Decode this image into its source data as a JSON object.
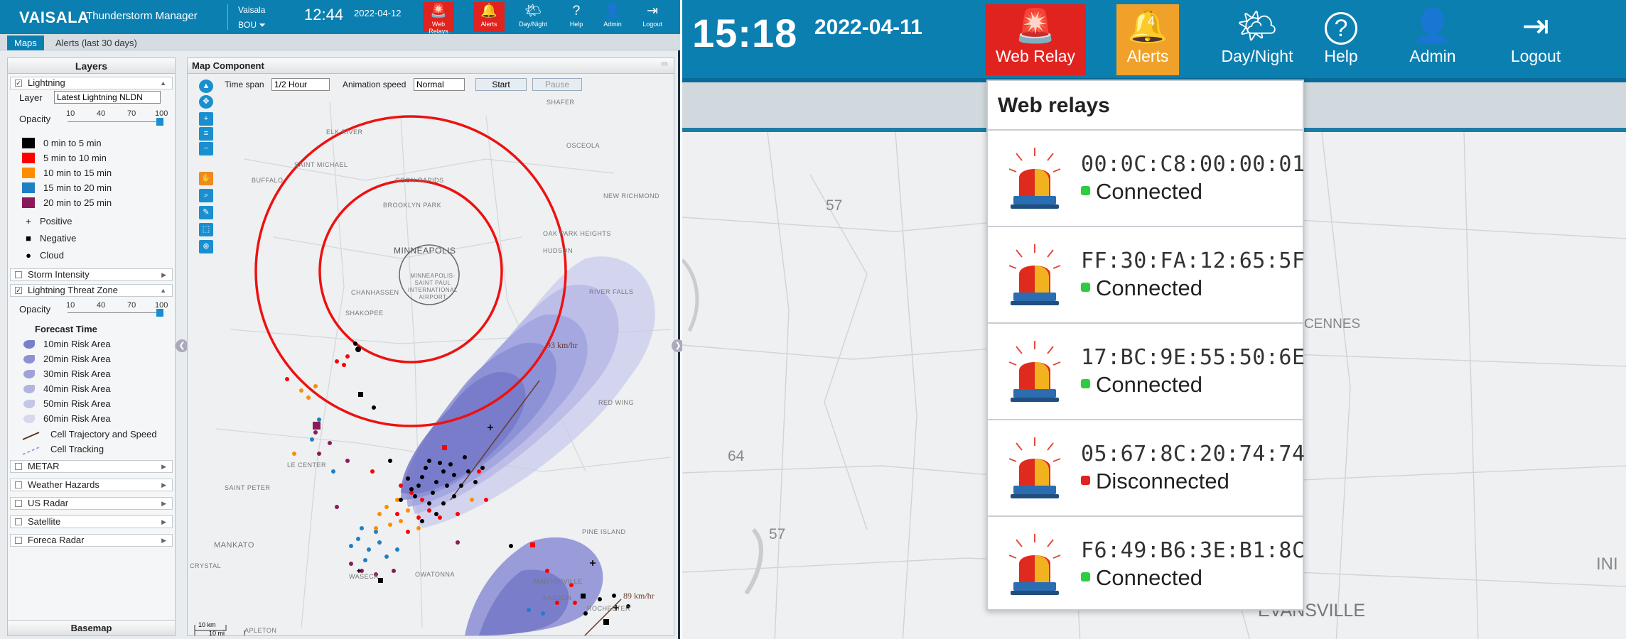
{
  "left": {
    "brand": "VAISALA",
    "app_title": "/ Thunderstorm Manager",
    "org": "Vaisala",
    "site": "BOU ⏷",
    "clock": "12:44",
    "date": "2022-04-12",
    "nav": [
      "Web Relays",
      "Alerts",
      "Day/Night",
      "Help",
      "Admin",
      "Logout"
    ],
    "tabs": [
      "Maps",
      "Alerts (last 30 days)"
    ],
    "layers_title": "Layers",
    "lightning": {
      "label": "Lightning",
      "layer_label": "Layer",
      "layer_value": "Latest Lightning NLDN",
      "opacity_label": "Opacity",
      "opacity_ticks": [
        "10",
        "40",
        "70",
        "100"
      ],
      "age_legend": [
        {
          "label": "0 min to 5 min",
          "color": "#000000"
        },
        {
          "label": "5 min to 10 min",
          "color": "#ff0000"
        },
        {
          "label": "10 min to 15 min",
          "color": "#ff8c00"
        },
        {
          "label": "15 min to 20 min",
          "color": "#1f7fc4"
        },
        {
          "label": "20 min to 25 min",
          "color": "#8b1a5a"
        }
      ],
      "type_legend": [
        {
          "symbol": "+",
          "label": "Positive"
        },
        {
          "symbol": "■",
          "label": "Negative"
        },
        {
          "symbol": "●",
          "label": "Cloud"
        }
      ]
    },
    "storm_intensity": "Storm Intensity",
    "threat_zone": {
      "label": "Lightning Threat Zone",
      "opacity_label": "Opacity",
      "opacity_ticks": [
        "10",
        "40",
        "70",
        "100"
      ],
      "forecast_title": "Forecast Time",
      "areas": [
        "10min Risk Area",
        "20min Risk Area",
        "30min Risk Area",
        "40min Risk Area",
        "50min Risk Area",
        "60min Risk Area"
      ],
      "trajectory": "Cell Trajectory and Speed",
      "tracking": "Cell Tracking"
    },
    "other_layers": [
      "METAR",
      "Weather Hazards",
      "US Radar",
      "Satellite",
      "Foreca Radar"
    ],
    "basemap": "Basemap",
    "map": {
      "title": "Map Component",
      "timespan_label": "Time span",
      "timespan_value": "1/2 Hour",
      "speed_label": "Animation speed",
      "speed_value": "Normal",
      "start": "Start",
      "pause": "Pause",
      "speed1": "93 km/hr",
      "speed2": "89 km/hr",
      "scale_km": "10 km",
      "scale_mi": "10 mi",
      "places": [
        "ELK RIVER",
        "SAINT MICHAEL",
        "BUFFALO",
        "COON RAPIDS",
        "BROOKLYN PARK",
        "MINNEAPOLIS",
        "MINNEAPOLIS-SAINT PAUL INTERNATIONAL AIRPORT",
        "CHANHASSEN",
        "SHAKOPEE",
        "OAK PARK HEIGHTS",
        "HUDSON",
        "RIVER FALLS",
        "RED WING",
        "NEW RICHMOND",
        "OSCEOLA",
        "SHAFER",
        "LE CENTER",
        "SAINT PETER",
        "MANKATO",
        "WASECA",
        "OWATONNA",
        "PINE ISLAND",
        "KASSON",
        "ROCHESTER",
        "CRYSTAL",
        "APLETON",
        "MANTORVILLE"
      ]
    }
  },
  "right": {
    "clock": "15:18",
    "date": "2022-04-11",
    "nav": [
      "Web Relay",
      "Alerts",
      "Day/Night",
      "Help",
      "Admin",
      "Logout"
    ],
    "alerts_count": "4",
    "popup_title": "Web relays",
    "relays": [
      {
        "mac": "00:0C:C8:00:00:01",
        "status": "Connected",
        "color": "#2ecc40"
      },
      {
        "mac": "FF:30:FA:12:65:5F",
        "status": "Connected",
        "color": "#2ecc40"
      },
      {
        "mac": "17:BC:9E:55:50:6E",
        "status": "Connected",
        "color": "#2ecc40"
      },
      {
        "mac": "05:67:8C:20:74:74",
        "status": "Disconnected",
        "color": "#e0231f"
      },
      {
        "mac": "F6:49:B6:3E:B1:8C",
        "status": "Connected",
        "color": "#2ecc40"
      }
    ],
    "map_labels": [
      "57",
      "64",
      "57",
      "CENNES",
      "EVANSVILLE",
      "INI"
    ]
  }
}
